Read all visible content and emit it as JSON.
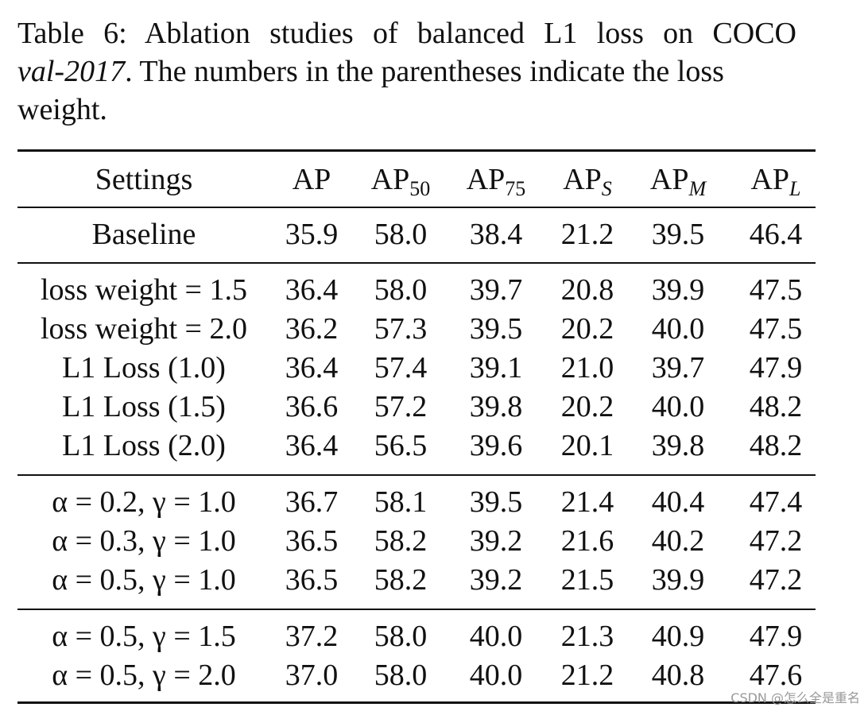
{
  "caption": {
    "prefix": "Table 6:  Ablation studies of balanced L1 loss on COCO",
    "dataset_italic": "val-2017",
    "rest_line2": ". The numbers in the parentheses indicate the loss",
    "line3": "weight."
  },
  "table": {
    "header": {
      "settings": "Settings",
      "ap": "AP",
      "ap50_base": "AP",
      "ap50_sub": "50",
      "ap75_base": "AP",
      "ap75_sub": "75",
      "aps_base": "AP",
      "aps_sub": "S",
      "apm_base": "AP",
      "apm_sub": "M",
      "apl_base": "AP",
      "apl_sub": "L"
    },
    "rows": [
      {
        "setting": "Baseline",
        "values": [
          "35.9",
          "58.0",
          "38.4",
          "21.2",
          "39.5",
          "46.4"
        ]
      },
      {
        "setting": "loss weight = 1.5",
        "values": [
          "36.4",
          "58.0",
          "39.7",
          "20.8",
          "39.9",
          "47.5"
        ]
      },
      {
        "setting": "loss weight = 2.0",
        "values": [
          "36.2",
          "57.3",
          "39.5",
          "20.2",
          "40.0",
          "47.5"
        ]
      },
      {
        "setting": "L1 Loss (1.0)",
        "values": [
          "36.4",
          "57.4",
          "39.1",
          "21.0",
          "39.7",
          "47.9"
        ]
      },
      {
        "setting": "L1 Loss (1.5)",
        "values": [
          "36.6",
          "57.2",
          "39.8",
          "20.2",
          "40.0",
          "48.2"
        ]
      },
      {
        "setting": "L1 Loss (2.0)",
        "values": [
          "36.4",
          "56.5",
          "39.6",
          "20.1",
          "39.8",
          "48.2"
        ]
      },
      {
        "setting": "α = 0.2, γ = 1.0",
        "values": [
          "36.7",
          "58.1",
          "39.5",
          "21.4",
          "40.4",
          "47.4"
        ]
      },
      {
        "setting": "α = 0.3, γ = 1.0",
        "values": [
          "36.5",
          "58.2",
          "39.2",
          "21.6",
          "40.2",
          "47.2"
        ]
      },
      {
        "setting": "α = 0.5, γ = 1.0",
        "values": [
          "36.5",
          "58.2",
          "39.2",
          "21.5",
          "39.9",
          "47.2"
        ]
      },
      {
        "setting": "α = 0.5, γ = 1.5",
        "values": [
          "37.2",
          "58.0",
          "40.0",
          "21.3",
          "40.9",
          "47.9"
        ]
      },
      {
        "setting": "α = 0.5, γ = 2.0",
        "values": [
          "37.0",
          "58.0",
          "40.0",
          "21.2",
          "40.8",
          "47.6"
        ]
      }
    ]
  },
  "watermark": "CSDN @怎么全是重名"
}
